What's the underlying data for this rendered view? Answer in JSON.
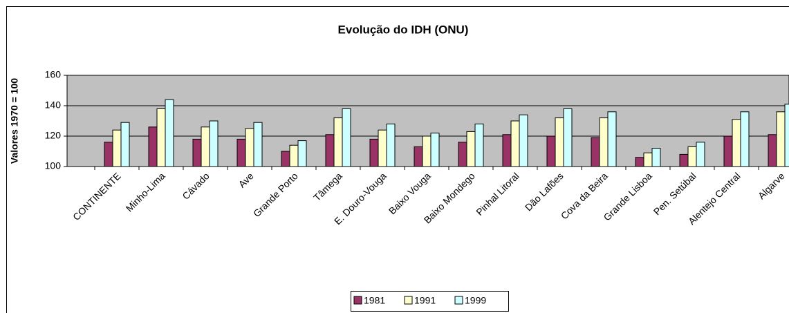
{
  "chart_data": {
    "type": "bar",
    "title": "Evolução do IDH (ONU)",
    "y_label": "Valores 1970 = 100",
    "categories": [
      "CONTINENTE",
      "Minho-Lima",
      "Cávado",
      "Ave",
      "Grande Porto",
      "Tâmega",
      "E. Douro-Vouga",
      "Baixo Vouga",
      "Baixo Mondego",
      "Pinhal Litoral",
      "Dão Lafões",
      "Cova da Beira",
      "Grande Lisboa",
      "Pen. Setúbal",
      "Alentejo Central",
      "Algarve"
    ],
    "series": [
      {
        "name": "1981",
        "color": "#993366",
        "values": [
          116,
          126,
          118,
          118,
          110,
          121,
          118,
          113,
          116,
          121,
          120,
          119,
          106,
          108,
          120,
          121
        ]
      },
      {
        "name": "1991",
        "color": "#ffffcc",
        "values": [
          124,
          138,
          126,
          125,
          114,
          132,
          124,
          120,
          123,
          130,
          132,
          132,
          109,
          113,
          131,
          136
        ]
      },
      {
        "name": "1999",
        "color": "#ccffff",
        "values": [
          129,
          144,
          130,
          129,
          117,
          138,
          128,
          122,
          128,
          134,
          138,
          136,
          112,
          116,
          136,
          141
        ]
      }
    ],
    "ylim": [
      100,
      160
    ],
    "yticks": [
      100,
      120,
      140,
      160
    ],
    "grid": true,
    "legend": "bottom",
    "plot_background": "#c0c0c0"
  }
}
